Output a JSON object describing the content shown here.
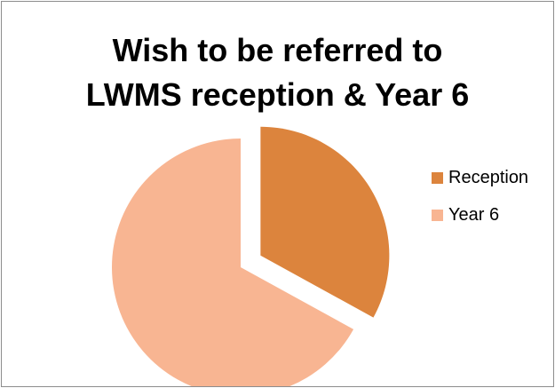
{
  "chart_data": {
    "type": "pie",
    "title_lines": [
      "Wish to be referred to",
      "LWMS reception & Year 6"
    ],
    "categories": [
      "Reception",
      "Year 6"
    ],
    "values": [
      33,
      67
    ],
    "colors": [
      "#dc843d",
      "#f8b592"
    ],
    "exploded": [
      "Reception"
    ],
    "legend_position": "right"
  }
}
